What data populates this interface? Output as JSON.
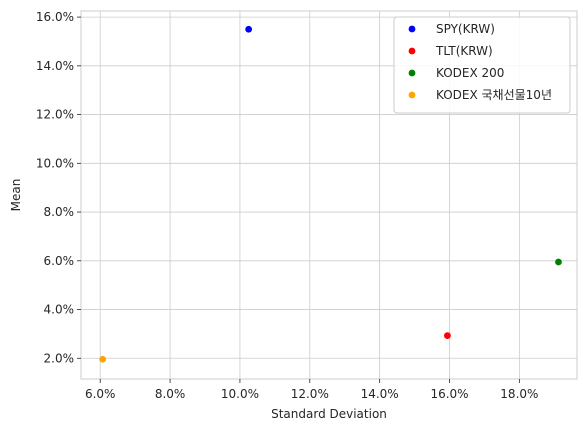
{
  "chart_data": {
    "type": "scatter",
    "title": "",
    "xlabel": "Standard Deviation",
    "ylabel": "Mean",
    "xlim": [
      0.0545,
      0.1965
    ],
    "ylim": [
      0.0115,
      0.1625
    ],
    "x_ticks": [
      0.06,
      0.08,
      0.1,
      0.12,
      0.14,
      0.16,
      0.18
    ],
    "x_tick_labels": [
      "6.0%",
      "8.0%",
      "10.0%",
      "12.0%",
      "14.0%",
      "16.0%",
      "18.0%"
    ],
    "y_ticks": [
      0.02,
      0.04,
      0.06,
      0.08,
      0.1,
      0.12,
      0.14,
      0.16
    ],
    "y_tick_labels": [
      "2.0%",
      "4.0%",
      "6.0%",
      "8.0%",
      "10.0%",
      "12.0%",
      "14.0%",
      "16.0%"
    ],
    "grid": true,
    "legend_position": "top-right",
    "series": [
      {
        "name": "SPY(KRW)",
        "color": "#0000ff",
        "x": [
          0.1025
        ],
        "y": [
          0.155
        ]
      },
      {
        "name": "TLT(KRW)",
        "color": "#ff0000",
        "x": [
          0.1594
        ],
        "y": [
          0.0293
        ]
      },
      {
        "name": "KODEX 200",
        "color": "#008000",
        "x": [
          0.1912
        ],
        "y": [
          0.0595
        ]
      },
      {
        "name": "KODEX 국채선물10년",
        "color": "#ffa500",
        "x": [
          0.0607
        ],
        "y": [
          0.0196
        ]
      }
    ]
  }
}
